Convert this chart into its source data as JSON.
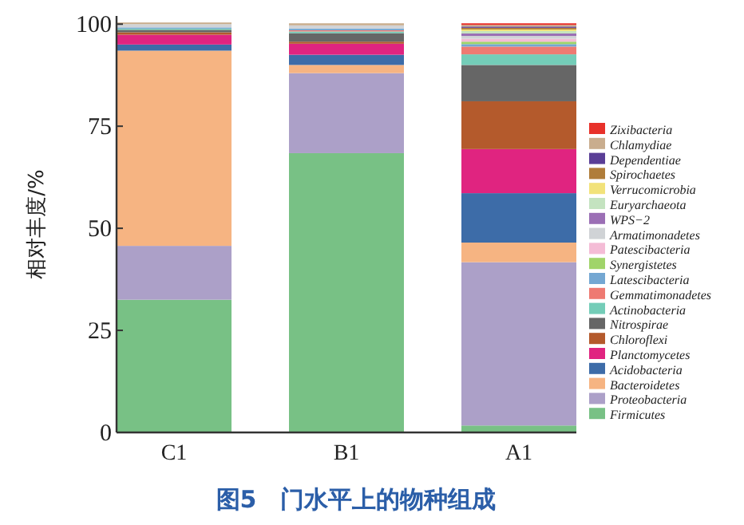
{
  "chart_data": {
    "type": "bar",
    "stacked": true,
    "title": "图5　门水平上的物种组成",
    "ylabel": "相对丰度/%",
    "categories": [
      "C1",
      "B1",
      "A1"
    ],
    "ylim": [
      0,
      102
    ],
    "yticks": [
      0,
      25,
      50,
      75,
      100
    ],
    "grid": false,
    "legend": "right",
    "series": [
      {
        "name": "Firmicutes",
        "color": "#78c185",
        "values": [
          32.5,
          68.4,
          1.7
        ]
      },
      {
        "name": "Proteobacteria",
        "color": "#aca0c8",
        "values": [
          13.2,
          19.6,
          40.0
        ]
      },
      {
        "name": "Bacteroidetes",
        "color": "#f6b482",
        "values": [
          47.8,
          2.0,
          4.8
        ]
      },
      {
        "name": "Acidobacteria",
        "color": "#3d6ca8",
        "values": [
          1.5,
          2.5,
          12.1
        ]
      },
      {
        "name": "Planctomycetes",
        "color": "#e02480",
        "values": [
          2.4,
          2.7,
          10.8
        ]
      },
      {
        "name": "Chloroflexi",
        "color": "#b45a2c",
        "values": [
          0.6,
          0.5,
          11.7
        ]
      },
      {
        "name": "Nitrospirae",
        "color": "#666666",
        "values": [
          0.6,
          2.1,
          8.9
        ]
      },
      {
        "name": "Actinobacteria",
        "color": "#74cdb8",
        "values": [
          0.3,
          0.4,
          2.6
        ]
      },
      {
        "name": "Gemmatimonadetes",
        "color": "#ee7a72",
        "values": [
          null,
          0.3,
          1.9
        ]
      },
      {
        "name": "Latescibacteria",
        "color": "#74a7d2",
        "values": [
          0.3,
          0.4,
          0.6
        ]
      },
      {
        "name": "Synergistetes",
        "color": "#a0d46a",
        "values": [
          null,
          null,
          0.6
        ]
      },
      {
        "name": "Patescibacteria",
        "color": "#f4bcd6",
        "values": [
          null,
          null,
          0.7
        ]
      },
      {
        "name": "Armatimonadetes",
        "color": "#d0d3d6",
        "values": [
          0.8,
          0.8,
          0.7
        ]
      },
      {
        "name": "WPS−2",
        "color": "#9b6fb5",
        "values": [
          null,
          null,
          0.6
        ]
      },
      {
        "name": "Euryarchaeota",
        "color": "#c4e3c0",
        "values": [
          null,
          null,
          0.6
        ]
      },
      {
        "name": "Verrucomicrobia",
        "color": "#f2e27a",
        "values": [
          null,
          null,
          0.4
        ]
      },
      {
        "name": "Spirochaetes",
        "color": "#b07d3a",
        "values": [
          null,
          null,
          0.4
        ]
      },
      {
        "name": "Dependentiae",
        "color": "#5a3e96",
        "values": [
          null,
          null,
          0.3
        ]
      },
      {
        "name": "Chlamydiae",
        "color": "#c9ad8e",
        "values": [
          0.4,
          0.5,
          0.4
        ]
      },
      {
        "name": "Zixibacteria",
        "color": "#e8312a",
        "values": [
          null,
          null,
          0.4
        ]
      }
    ]
  }
}
